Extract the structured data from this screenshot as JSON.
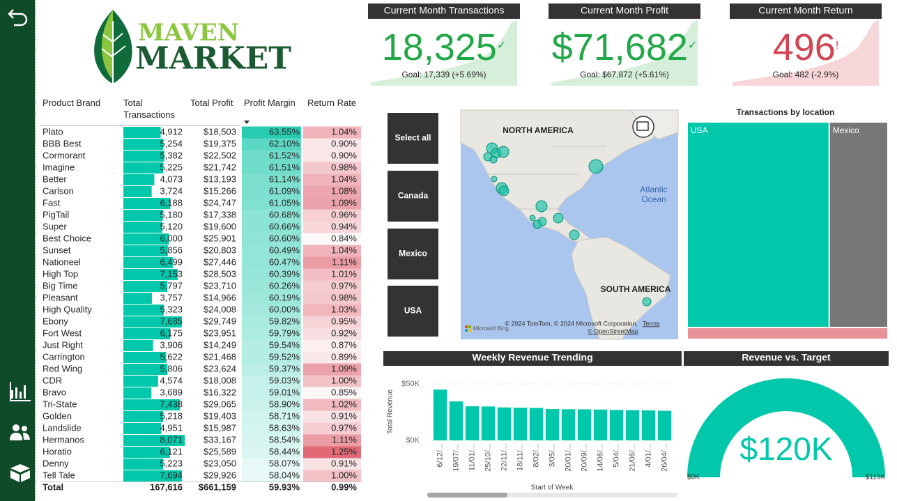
{
  "logo": {
    "line1": "MAVEN",
    "line2": "MARKET"
  },
  "kpis": [
    {
      "title": "Current Month Transactions",
      "value": "18,325",
      "status": "✓",
      "goal": "Goal: 17,339 (+5.69%)",
      "color": "#22a848",
      "area_color": "#d6efda"
    },
    {
      "title": "Current Month Profit",
      "value": "$71,682",
      "status": "✓",
      "goal": "Goal: $67,872 (+5.61%)",
      "color": "#22a848",
      "area_color": "#d6efda"
    },
    {
      "title": "Current Month Return",
      "value": "496",
      "status": "!",
      "goal": "Goal: 482 (-2.9%)",
      "color": "#d14452",
      "area_color": "#f7d6d9"
    }
  ],
  "table": {
    "headers": [
      "Product Brand",
      "Total Transactions",
      "Total Profit",
      "Profit Margin",
      "Return Rate"
    ],
    "rows": [
      [
        "Plato",
        4912,
        "4,912",
        "$18,503",
        63.55,
        "63.55%",
        1.04,
        "1.04%"
      ],
      [
        "BBB Best",
        5254,
        "5,254",
        "$19,375",
        62.1,
        "62.10%",
        0.9,
        "0.90%"
      ],
      [
        "Cormorant",
        5382,
        "5,382",
        "$22,502",
        61.52,
        "61.52%",
        0.9,
        "0.90%"
      ],
      [
        "Imagine",
        5225,
        "5,225",
        "$21,742",
        61.51,
        "61.51%",
        0.98,
        "0.98%"
      ],
      [
        "Better",
        4073,
        "4,073",
        "$13,193",
        61.14,
        "61.14%",
        1.04,
        "1.04%"
      ],
      [
        "Carlson",
        3724,
        "3,724",
        "$15,266",
        61.09,
        "61.09%",
        1.08,
        "1.08%"
      ],
      [
        "Fast",
        6188,
        "6,188",
        "$24,747",
        61.05,
        "61.05%",
        1.09,
        "1.09%"
      ],
      [
        "PigTail",
        5180,
        "5,180",
        "$17,338",
        60.68,
        "60.68%",
        0.96,
        "0.96%"
      ],
      [
        "Super",
        5120,
        "5,120",
        "$19,600",
        60.66,
        "60.66%",
        0.94,
        "0.94%"
      ],
      [
        "Best Choice",
        6000,
        "6,000",
        "$25,901",
        60.6,
        "60.60%",
        0.84,
        "0.84%"
      ],
      [
        "Sunset",
        5856,
        "5,856",
        "$20,803",
        60.49,
        "60.49%",
        1.04,
        "1.04%"
      ],
      [
        "Nationeel",
        6499,
        "6,499",
        "$27,446",
        60.47,
        "60.47%",
        1.11,
        "1.11%"
      ],
      [
        "High Top",
        7153,
        "7,153",
        "$28,503",
        60.39,
        "60.39%",
        1.01,
        "1.01%"
      ],
      [
        "Big Time",
        5797,
        "5,797",
        "$23,710",
        60.26,
        "60.26%",
        0.97,
        "0.97%"
      ],
      [
        "Pleasant",
        3757,
        "3,757",
        "$14,966",
        60.19,
        "60.19%",
        0.98,
        "0.98%"
      ],
      [
        "High Quality",
        5323,
        "5,323",
        "$24,008",
        60.0,
        "60.00%",
        1.03,
        "1.03%"
      ],
      [
        "Ebony",
        7685,
        "7,685",
        "$29,749",
        59.82,
        "59.82%",
        0.95,
        "0.95%"
      ],
      [
        "Fort West",
        6175,
        "6,175",
        "$23,951",
        59.79,
        "59.79%",
        0.92,
        "0.92%"
      ],
      [
        "Just Right",
        3906,
        "3,906",
        "$14,249",
        59.54,
        "59.54%",
        0.87,
        "0.87%"
      ],
      [
        "Carrington",
        5622,
        "5,622",
        "$21,468",
        59.52,
        "59.52%",
        0.89,
        "0.89%"
      ],
      [
        "Red Wing",
        5806,
        "5,806",
        "$23,624",
        59.37,
        "59.37%",
        1.09,
        "1.09%"
      ],
      [
        "CDR",
        4574,
        "4,574",
        "$18,008",
        59.03,
        "59.03%",
        1.0,
        "1.00%"
      ],
      [
        "Bravo",
        3689,
        "3,689",
        "$16,322",
        59.01,
        "59.01%",
        0.85,
        "0.85%"
      ],
      [
        "Tri-State",
        7438,
        "7,438",
        "$29,065",
        58.9,
        "58.90%",
        1.02,
        "1.02%"
      ],
      [
        "Golden",
        5218,
        "5,218",
        "$19,403",
        58.71,
        "58.71%",
        0.91,
        "0.91%"
      ],
      [
        "Landslide",
        4951,
        "4,951",
        "$15,987",
        58.63,
        "58.63%",
        0.97,
        "0.97%"
      ],
      [
        "Hermanos",
        8071,
        "8,071",
        "$33,167",
        58.54,
        "58.54%",
        1.11,
        "1.11%"
      ],
      [
        "Horatio",
        6121,
        "6,121",
        "$25,589",
        58.44,
        "58.44%",
        1.25,
        "1.25%"
      ],
      [
        "Denny",
        5223,
        "5,223",
        "$23,050",
        58.07,
        "58.07%",
        0.91,
        "0.91%"
      ],
      [
        "Tell Tale",
        7694,
        "7,694",
        "$29,926",
        58.04,
        "58.04%",
        1.0,
        "1.00%"
      ]
    ],
    "total": [
      "Total",
      "167,616",
      "$661,159",
      "59.93%",
      "0.99%"
    ]
  },
  "slicers": [
    "Select all",
    "Canada",
    "Mexico",
    "USA"
  ],
  "map": {
    "continents": [
      "NORTH AMERICA",
      "SOUTH AMERICA"
    ],
    "ocean": [
      "Atlantic",
      "Ocean"
    ],
    "attribution": "© 2024 TomTom, © 2024 Microsoft Corporation,",
    "terms": "Terms",
    "osm": "© OpenStreetMap",
    "provider": "Microsoft Bing"
  },
  "chart_data": [
    {
      "type": "bar",
      "title": "Weekly Revenue Trending",
      "y_label": "Total Revenue",
      "x_label": "Start of Week",
      "categories": [
        "6/12/...",
        "19/07/...",
        "11/01/...",
        "25/10/...",
        "22/11/...",
        "18/11/...",
        "8/02/...",
        "3/05/...",
        "20/01/...",
        "20/09/...",
        "14/06/...",
        "5/04/...",
        "21/06/...",
        "4/01/...",
        "26/04/..."
      ],
      "values": [
        45000,
        34500,
        30200,
        30000,
        29200,
        29000,
        28800,
        27800,
        27600,
        27500,
        27300,
        27000,
        26800,
        26600,
        26200
      ],
      "color": "#01c8aa",
      "ylim": [
        0,
        50000
      ],
      "yticks": [
        {
          "value": 0,
          "label": "$0K"
        },
        {
          "value": 50000,
          "label": "$50K"
        }
      ],
      "grid": true
    },
    {
      "type": "treemap",
      "title": "Transactions by location",
      "categories": [
        "USA",
        "Mexico",
        null
      ],
      "values": [
        111700,
        46200,
        9100
      ],
      "colors": [
        "#01c8aa",
        "#777777",
        "#e8939a"
      ]
    },
    {
      "type": "gauge",
      "title": "Revenue vs. Target",
      "value": 120000,
      "value_label": "$120K",
      "min": 0,
      "min_label": "$0K",
      "max": 119000,
      "max_label": "$119K",
      "color": "#01c8aa"
    }
  ]
}
